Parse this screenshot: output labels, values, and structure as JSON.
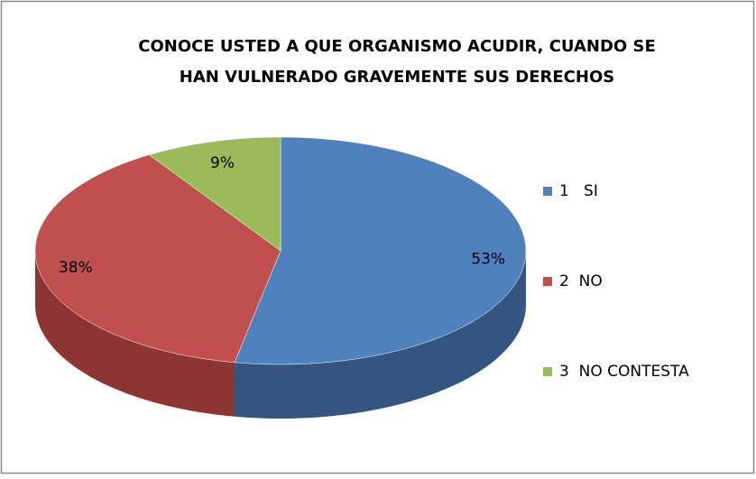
{
  "chart_data": {
    "type": "pie3d",
    "title": [
      "CONOCE USTED  A QUE ORGANISMO ACUDIR, CUANDO SE",
      "HAN VULNERADO GRAVEMENTE SUS DERECHOS"
    ],
    "categories": [
      "1   SI",
      "2  NO",
      "3  NO CONTESTA"
    ],
    "values": [
      53,
      38,
      9
    ],
    "value_labels": [
      "53%",
      "38%",
      "9%"
    ],
    "colors": [
      "#4f81bd",
      "#c0504d",
      "#9bbb59"
    ],
    "side_colors": [
      "#34557f",
      "#8c3533",
      "#6f8a3c"
    ],
    "legend": "right"
  }
}
